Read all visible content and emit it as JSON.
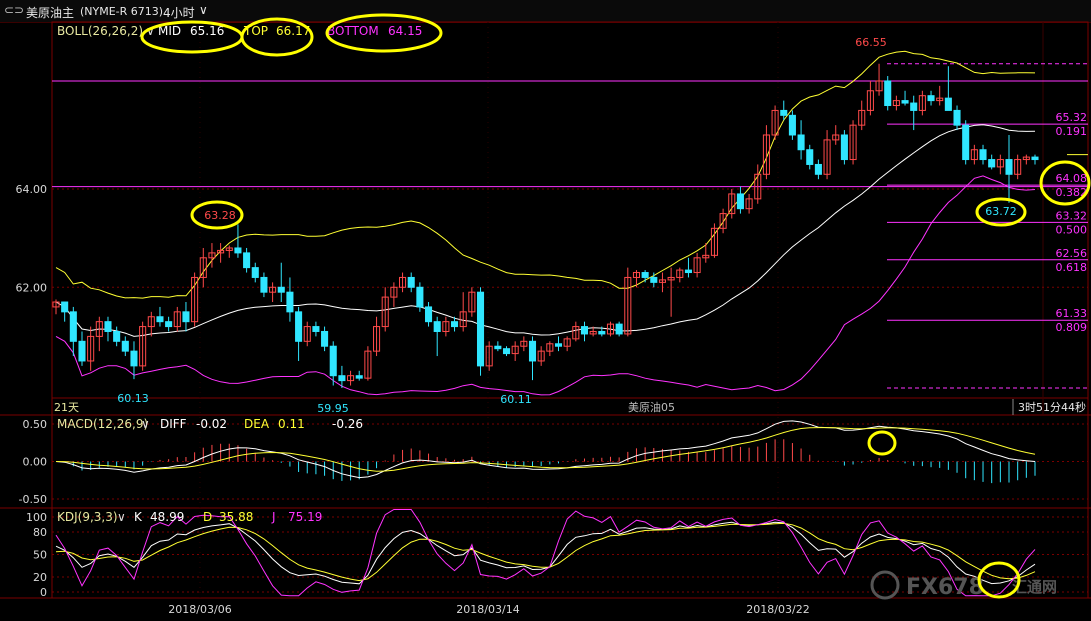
{
  "toolbar": {
    "back_icon": "back-arrow-icon",
    "symbol": "美原油主",
    "code": "(NYME-R 6713)",
    "period": "4小时",
    "period_icon": "chevron-down-icon"
  },
  "colors": {
    "up": "#ff4a4a",
    "down": "#30e6ff",
    "boll_mid": "#ffffff",
    "boll_top": "#ffff33",
    "boll_bottom": "#ff33ff",
    "fib": "#ff33ff",
    "highlight_circle": "#ffff00",
    "grid": "#7a0000"
  },
  "chart_data": [
    {
      "type": "candlestick",
      "panel": "main",
      "indicator_label": "BOLL(26,26,2)",
      "indicator_icon": "chevron-down-icon",
      "mid_label": "MID",
      "mid_value": "65.16",
      "top_label": "TOP",
      "top_value": "66.17",
      "bottom_label": "BOTTOM",
      "bottom_value": "64.15",
      "y_ticks": [
        "64.00",
        "62.00"
      ],
      "ylim": [
        59.4,
        67.4
      ],
      "x_ticks": [
        "2018/03/06",
        "2018/03/14",
        "2018/03/22"
      ],
      "annotations": [
        "66.55",
        "63.28",
        "60.13",
        "59.95",
        "60.11",
        "63.72"
      ],
      "footer_left": "21天",
      "footer_mid": "美原油05",
      "footer_right": "3时51分44秒",
      "fib_levels": [
        {
          "price": "65.32",
          "ratio": "0.191"
        },
        {
          "price": "64.08",
          "ratio": "0.382"
        },
        {
          "price": "63.32",
          "ratio": "0.500"
        },
        {
          "price": "62.56",
          "ratio": "0.618"
        },
        {
          "price": "61.33",
          "ratio": "0.809"
        }
      ],
      "reference_lines": [
        66.2,
        64.05
      ],
      "candles": [
        {
          "o": 61.6,
          "h": 61.75,
          "l": 61.45,
          "c": 61.7
        },
        {
          "o": 61.7,
          "h": 61.7,
          "l": 61.3,
          "c": 61.5
        },
        {
          "o": 61.5,
          "h": 61.6,
          "l": 60.6,
          "c": 60.9
        },
        {
          "o": 60.9,
          "h": 61.1,
          "l": 60.4,
          "c": 60.5
        },
        {
          "o": 60.5,
          "h": 61.2,
          "l": 60.3,
          "c": 61.0
        },
        {
          "o": 61.0,
          "h": 61.4,
          "l": 60.7,
          "c": 61.3
        },
        {
          "o": 61.3,
          "h": 61.4,
          "l": 60.9,
          "c": 61.1
        },
        {
          "o": 61.1,
          "h": 61.2,
          "l": 60.8,
          "c": 60.9
        },
        {
          "o": 60.9,
          "h": 61.0,
          "l": 60.6,
          "c": 60.7
        },
        {
          "o": 60.7,
          "h": 60.9,
          "l": 60.13,
          "c": 60.4
        },
        {
          "o": 60.4,
          "h": 61.3,
          "l": 60.3,
          "c": 61.2
        },
        {
          "o": 61.2,
          "h": 61.5,
          "l": 61.0,
          "c": 61.4
        },
        {
          "o": 61.4,
          "h": 61.6,
          "l": 61.2,
          "c": 61.3
        },
        {
          "o": 61.3,
          "h": 61.4,
          "l": 61.1,
          "c": 61.2
        },
        {
          "o": 61.2,
          "h": 61.6,
          "l": 61.1,
          "c": 61.5
        },
        {
          "o": 61.5,
          "h": 61.7,
          "l": 61.1,
          "c": 61.3
        },
        {
          "o": 61.3,
          "h": 62.3,
          "l": 61.2,
          "c": 62.2
        },
        {
          "o": 62.2,
          "h": 62.8,
          "l": 62.0,
          "c": 62.6
        },
        {
          "o": 62.6,
          "h": 62.9,
          "l": 62.4,
          "c": 62.7
        },
        {
          "o": 62.7,
          "h": 62.9,
          "l": 62.5,
          "c": 62.75
        },
        {
          "o": 62.75,
          "h": 62.85,
          "l": 62.6,
          "c": 62.8
        },
        {
          "o": 62.8,
          "h": 63.28,
          "l": 62.6,
          "c": 62.7
        },
        {
          "o": 62.7,
          "h": 62.8,
          "l": 62.3,
          "c": 62.4
        },
        {
          "o": 62.4,
          "h": 62.5,
          "l": 62.1,
          "c": 62.2
        },
        {
          "o": 62.2,
          "h": 62.3,
          "l": 61.8,
          "c": 61.9
        },
        {
          "o": 61.9,
          "h": 62.1,
          "l": 61.7,
          "c": 62.0
        },
        {
          "o": 62.0,
          "h": 62.5,
          "l": 61.7,
          "c": 61.9
        },
        {
          "o": 61.9,
          "h": 62.2,
          "l": 61.3,
          "c": 61.5
        },
        {
          "o": 61.5,
          "h": 61.6,
          "l": 60.5,
          "c": 60.9
        },
        {
          "o": 60.9,
          "h": 61.3,
          "l": 60.8,
          "c": 61.2
        },
        {
          "o": 61.2,
          "h": 61.3,
          "l": 61.0,
          "c": 61.1
        },
        {
          "o": 61.1,
          "h": 61.2,
          "l": 60.7,
          "c": 60.8
        },
        {
          "o": 60.8,
          "h": 60.9,
          "l": 60.0,
          "c": 60.2
        },
        {
          "o": 60.2,
          "h": 60.4,
          "l": 59.95,
          "c": 60.1
        },
        {
          "o": 60.1,
          "h": 60.3,
          "l": 60.0,
          "c": 60.2
        },
        {
          "o": 60.2,
          "h": 60.3,
          "l": 60.1,
          "c": 60.15
        },
        {
          "o": 60.15,
          "h": 60.8,
          "l": 60.1,
          "c": 60.7
        },
        {
          "o": 60.7,
          "h": 61.4,
          "l": 60.6,
          "c": 61.2
        },
        {
          "o": 61.2,
          "h": 62.0,
          "l": 61.1,
          "c": 61.8
        },
        {
          "o": 61.8,
          "h": 62.1,
          "l": 61.6,
          "c": 62.0
        },
        {
          "o": 62.0,
          "h": 62.3,
          "l": 61.9,
          "c": 62.2
        },
        {
          "o": 62.2,
          "h": 62.3,
          "l": 61.9,
          "c": 62.0
        },
        {
          "o": 62.0,
          "h": 62.1,
          "l": 61.5,
          "c": 61.6
        },
        {
          "o": 61.6,
          "h": 61.7,
          "l": 61.2,
          "c": 61.3
        },
        {
          "o": 61.3,
          "h": 61.4,
          "l": 60.6,
          "c": 61.1
        },
        {
          "o": 61.1,
          "h": 61.4,
          "l": 61.0,
          "c": 61.3
        },
        {
          "o": 61.3,
          "h": 61.4,
          "l": 61.1,
          "c": 61.2
        },
        {
          "o": 61.2,
          "h": 61.9,
          "l": 61.1,
          "c": 61.5
        },
        {
          "o": 61.5,
          "h": 62.0,
          "l": 61.4,
          "c": 61.9
        },
        {
          "o": 61.9,
          "h": 62.0,
          "l": 60.2,
          "c": 60.4
        },
        {
          "o": 60.4,
          "h": 60.9,
          "l": 60.3,
          "c": 60.8
        },
        {
          "o": 60.8,
          "h": 60.9,
          "l": 60.7,
          "c": 60.75
        },
        {
          "o": 60.75,
          "h": 60.8,
          "l": 60.6,
          "c": 60.65
        },
        {
          "o": 60.65,
          "h": 60.9,
          "l": 60.5,
          "c": 60.8
        },
        {
          "o": 60.8,
          "h": 61.0,
          "l": 60.7,
          "c": 60.9
        },
        {
          "o": 60.9,
          "h": 61.0,
          "l": 60.11,
          "c": 60.5
        },
        {
          "o": 60.5,
          "h": 60.8,
          "l": 60.4,
          "c": 60.7
        },
        {
          "o": 60.7,
          "h": 60.9,
          "l": 60.6,
          "c": 60.85
        },
        {
          "o": 60.85,
          "h": 61.0,
          "l": 60.7,
          "c": 60.8
        },
        {
          "o": 60.8,
          "h": 61.0,
          "l": 60.7,
          "c": 60.95
        },
        {
          "o": 60.95,
          "h": 61.3,
          "l": 60.9,
          "c": 61.2
        },
        {
          "o": 61.2,
          "h": 61.3,
          "l": 60.9,
          "c": 61.05
        },
        {
          "o": 61.05,
          "h": 61.2,
          "l": 61.0,
          "c": 61.1
        },
        {
          "o": 61.1,
          "h": 61.2,
          "l": 61.0,
          "c": 61.05
        },
        {
          "o": 61.05,
          "h": 61.3,
          "l": 61.0,
          "c": 61.25
        },
        {
          "o": 61.25,
          "h": 61.3,
          "l": 61.0,
          "c": 61.05
        },
        {
          "o": 61.05,
          "h": 62.4,
          "l": 61.0,
          "c": 62.2
        },
        {
          "o": 62.2,
          "h": 62.35,
          "l": 62.0,
          "c": 62.3
        },
        {
          "o": 62.3,
          "h": 62.35,
          "l": 62.1,
          "c": 62.2
        },
        {
          "o": 62.2,
          "h": 62.3,
          "l": 62.0,
          "c": 62.1
        },
        {
          "o": 62.1,
          "h": 62.3,
          "l": 61.9,
          "c": 62.15
        },
        {
          "o": 62.15,
          "h": 62.4,
          "l": 61.4,
          "c": 62.2
        },
        {
          "o": 62.2,
          "h": 62.4,
          "l": 62.1,
          "c": 62.35
        },
        {
          "o": 62.35,
          "h": 62.6,
          "l": 62.2,
          "c": 62.3
        },
        {
          "o": 62.3,
          "h": 62.7,
          "l": 62.2,
          "c": 62.6
        },
        {
          "o": 62.6,
          "h": 62.9,
          "l": 62.5,
          "c": 62.65
        },
        {
          "o": 62.65,
          "h": 63.3,
          "l": 62.6,
          "c": 63.2
        },
        {
          "o": 63.2,
          "h": 63.6,
          "l": 63.1,
          "c": 63.5
        },
        {
          "o": 63.5,
          "h": 64.0,
          "l": 63.4,
          "c": 63.9
        },
        {
          "o": 63.9,
          "h": 64.05,
          "l": 63.5,
          "c": 63.6
        },
        {
          "o": 63.6,
          "h": 63.9,
          "l": 63.5,
          "c": 63.8
        },
        {
          "o": 63.8,
          "h": 64.5,
          "l": 63.7,
          "c": 64.3
        },
        {
          "o": 64.3,
          "h": 65.3,
          "l": 64.2,
          "c": 65.1
        },
        {
          "o": 65.1,
          "h": 65.7,
          "l": 65.0,
          "c": 65.6
        },
        {
          "o": 65.6,
          "h": 65.8,
          "l": 65.4,
          "c": 65.5
        },
        {
          "o": 65.5,
          "h": 65.6,
          "l": 65.0,
          "c": 65.1
        },
        {
          "o": 65.1,
          "h": 65.4,
          "l": 64.6,
          "c": 64.8
        },
        {
          "o": 64.8,
          "h": 64.9,
          "l": 64.4,
          "c": 64.5
        },
        {
          "o": 64.5,
          "h": 64.6,
          "l": 64.2,
          "c": 64.3
        },
        {
          "o": 64.3,
          "h": 65.2,
          "l": 64.2,
          "c": 65.0
        },
        {
          "o": 65.0,
          "h": 65.3,
          "l": 64.9,
          "c": 65.1
        },
        {
          "o": 65.1,
          "h": 65.2,
          "l": 64.5,
          "c": 64.6
        },
        {
          "o": 64.6,
          "h": 65.4,
          "l": 64.5,
          "c": 65.3
        },
        {
          "o": 65.3,
          "h": 65.8,
          "l": 65.2,
          "c": 65.6
        },
        {
          "o": 65.6,
          "h": 66.2,
          "l": 65.5,
          "c": 66.0
        },
        {
          "o": 66.0,
          "h": 66.55,
          "l": 65.9,
          "c": 66.2
        },
        {
          "o": 66.2,
          "h": 66.3,
          "l": 65.6,
          "c": 65.7
        },
        {
          "o": 65.7,
          "h": 65.9,
          "l": 65.6,
          "c": 65.8
        },
        {
          "o": 65.8,
          "h": 66.0,
          "l": 65.7,
          "c": 65.75
        },
        {
          "o": 65.75,
          "h": 65.9,
          "l": 65.2,
          "c": 65.6
        },
        {
          "o": 65.6,
          "h": 66.0,
          "l": 65.5,
          "c": 65.9
        },
        {
          "o": 65.9,
          "h": 66.0,
          "l": 65.7,
          "c": 65.8
        },
        {
          "o": 65.8,
          "h": 66.1,
          "l": 65.7,
          "c": 65.85
        },
        {
          "o": 65.85,
          "h": 66.5,
          "l": 65.6,
          "c": 65.6
        },
        {
          "o": 65.6,
          "h": 65.7,
          "l": 65.2,
          "c": 65.3
        },
        {
          "o": 65.3,
          "h": 65.4,
          "l": 64.5,
          "c": 64.6
        },
        {
          "o": 64.6,
          "h": 64.9,
          "l": 64.5,
          "c": 64.8
        },
        {
          "o": 64.8,
          "h": 64.9,
          "l": 64.5,
          "c": 64.6
        },
        {
          "o": 64.6,
          "h": 64.7,
          "l": 64.4,
          "c": 64.45
        },
        {
          "o": 64.45,
          "h": 64.7,
          "l": 64.3,
          "c": 64.6
        },
        {
          "o": 64.6,
          "h": 65.1,
          "l": 63.72,
          "c": 64.3
        },
        {
          "o": 64.3,
          "h": 64.7,
          "l": 64.2,
          "c": 64.6
        },
        {
          "o": 64.6,
          "h": 64.7,
          "l": 64.5,
          "c": 64.65
        },
        {
          "o": 64.65,
          "h": 64.7,
          "l": 64.5,
          "c": 64.6
        }
      ]
    },
    {
      "type": "macd",
      "panel": "macd",
      "indicator_label": "MACD(12,26,9)",
      "indicator_icon": "chevron-down-icon",
      "diff_label": "DIFF",
      "diff_value": "-0.02",
      "dea_label": "DEA",
      "dea_value": "0.11",
      "macd_value": "-0.26",
      "y_ticks": [
        "0.50",
        "0.00",
        "-0.50"
      ],
      "ylim": [
        -0.62,
        0.62
      ]
    },
    {
      "type": "kdj",
      "panel": "kdj",
      "indicator_label": "KDJ(9,3,3)",
      "indicator_icon": "chevron-down-icon",
      "k_label": "K",
      "k_value": "48.99",
      "d_label": "D",
      "d_value": "35.88",
      "j_label": "J",
      "j_value": "75.19",
      "y_ticks": [
        "100",
        "80",
        "50",
        "20",
        "0"
      ],
      "ylim": [
        -8,
        112
      ]
    }
  ],
  "watermark": {
    "text": "FX678",
    "tail": "汇通网"
  }
}
